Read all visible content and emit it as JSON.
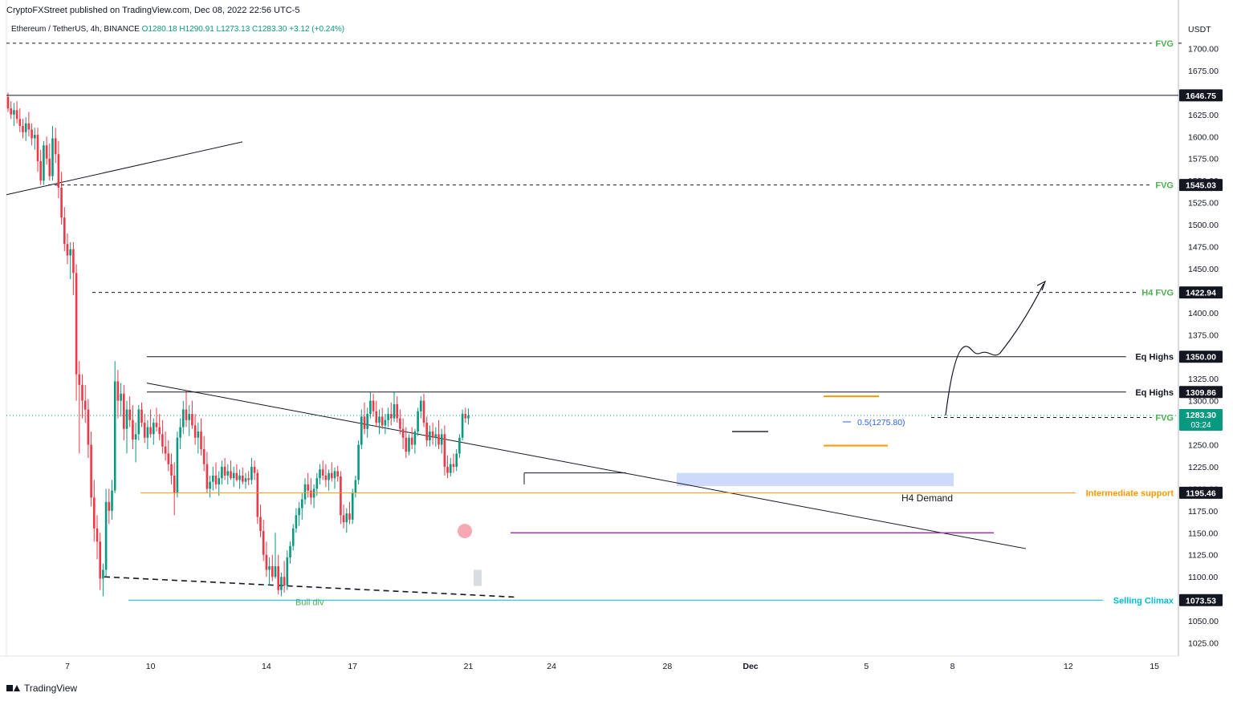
{
  "header": {
    "publisher_line": "CryptoFXStreet published on TradingView.com, Dec 08, 2022 22:56 UTC-5"
  },
  "legend": {
    "symbol": "Ethereum / TetherUS, 4h, BINANCE",
    "open": "O1280.18",
    "high": "H1290.91",
    "low": "L1273.13",
    "close": "C1283.30",
    "change": "+3.12 (+0.24%)"
  },
  "footer": {
    "brand": "TradingView"
  },
  "colors": {
    "up": "#089981",
    "down": "#f23645",
    "fvg": "#4caf50",
    "orange": "#ff9800",
    "purple": "#9c27b0",
    "cyan": "#00bcd4",
    "blue_zone": "#c5d4fb"
  },
  "chart_data": {
    "type": "candlestick",
    "y_unit": "USDT",
    "ylim": [
      1010,
      1715
    ],
    "y_ticks": [
      1025,
      1050,
      1075,
      1100,
      1125,
      1150,
      1175,
      1200,
      1225,
      1250,
      1275,
      1300,
      1325,
      1350,
      1375,
      1400,
      1425,
      1450,
      1475,
      1500,
      1525,
      1550,
      1575,
      1600,
      1625,
      1650,
      1675,
      1700
    ],
    "x_ticks": [
      {
        "label": "7",
        "bar": 20
      },
      {
        "label": "10",
        "bar": 48
      },
      {
        "label": "14",
        "bar": 87
      },
      {
        "label": "17",
        "bar": 116
      },
      {
        "label": "21",
        "bar": 155
      },
      {
        "label": "24",
        "bar": 183
      },
      {
        "label": "28",
        "bar": 222
      },
      {
        "label": "Dec",
        "bar": 250
      },
      {
        "label": "5",
        "bar": 289
      },
      {
        "label": "8",
        "bar": 318
      },
      {
        "label": "12",
        "bar": 357
      },
      {
        "label": "15",
        "bar": 386
      }
    ],
    "levels": [
      {
        "label": "FVG",
        "value": 1706,
        "style": "dashed",
        "color": "#4caf50",
        "badge": ""
      },
      {
        "label": "",
        "value": 1646.75,
        "style": "solid",
        "color": "#131722",
        "badge": "1646.75"
      },
      {
        "label": "FVG",
        "value": 1545.03,
        "style": "dashed",
        "color": "#4caf50",
        "badge": "1545.03"
      },
      {
        "label": "H4 FVG",
        "value": 1422.94,
        "style": "dashed",
        "color": "#4caf50",
        "badge": "1422.94"
      },
      {
        "label": "Eq Highs",
        "value": 1350.0,
        "style": "solid",
        "color": "#131722",
        "badge": "1350.00"
      },
      {
        "label": "Eq Highs",
        "value": 1309.86,
        "style": "solid",
        "color": "#131722",
        "badge": "1309.86"
      },
      {
        "label": "FVG",
        "value": 1280.94,
        "style": "dashed",
        "color": "#4caf50",
        "badge": "1280.94"
      },
      {
        "label": "Intermediate support",
        "value": 1195.46,
        "style": "solid",
        "color": "#ff9800",
        "badge": "1195.46"
      },
      {
        "label": "Selling Climax",
        "value": 1073.53,
        "style": "solid",
        "color": "#00bcd4",
        "badge": "1073.53"
      }
    ],
    "price_badge": {
      "price": "1283.30",
      "countdown": "03:24"
    },
    "annotations": {
      "fib": "0.5(1275.80)",
      "h4_demand": "H4 Demand",
      "bull_div": "Bull div"
    },
    "candles": [
      [
        1645,
        1650,
        1628,
        1632
      ],
      [
        1632,
        1640,
        1620,
        1625
      ],
      [
        1625,
        1638,
        1612,
        1630
      ],
      [
        1630,
        1640,
        1615,
        1620
      ],
      [
        1620,
        1632,
        1605,
        1612
      ],
      [
        1612,
        1620,
        1598,
        1605
      ],
      [
        1605,
        1622,
        1595,
        1615
      ],
      [
        1615,
        1628,
        1600,
        1608
      ],
      [
        1608,
        1615,
        1590,
        1598
      ],
      [
        1598,
        1610,
        1585,
        1602
      ],
      [
        1602,
        1610,
        1560,
        1572
      ],
      [
        1572,
        1585,
        1545,
        1550
      ],
      [
        1550,
        1595,
        1545,
        1590
      ],
      [
        1590,
        1600,
        1568,
        1575
      ],
      [
        1575,
        1592,
        1550,
        1555
      ],
      [
        1555,
        1612,
        1550,
        1598
      ],
      [
        1598,
        1610,
        1570,
        1580
      ],
      [
        1580,
        1595,
        1530,
        1542
      ],
      [
        1542,
        1560,
        1500,
        1508
      ],
      [
        1508,
        1520,
        1470,
        1478
      ],
      [
        1478,
        1490,
        1455,
        1465
      ],
      [
        1465,
        1480,
        1438,
        1472
      ],
      [
        1472,
        1480,
        1420,
        1445
      ],
      [
        1445,
        1455,
        1300,
        1330
      ],
      [
        1330,
        1345,
        1240,
        1318
      ],
      [
        1318,
        1330,
        1280,
        1300
      ],
      [
        1300,
        1318,
        1275,
        1290
      ],
      [
        1290,
        1302,
        1235,
        1250
      ],
      [
        1250,
        1265,
        1180,
        1190
      ],
      [
        1190,
        1210,
        1140,
        1155
      ],
      [
        1155,
        1170,
        1120,
        1140
      ],
      [
        1140,
        1150,
        1085,
        1098
      ],
      [
        1098,
        1115,
        1078,
        1108
      ],
      [
        1108,
        1200,
        1100,
        1185
      ],
      [
        1185,
        1200,
        1160,
        1175
      ],
      [
        1175,
        1210,
        1165,
        1198
      ],
      [
        1198,
        1345,
        1195,
        1322
      ],
      [
        1322,
        1335,
        1280,
        1300
      ],
      [
        1300,
        1320,
        1282,
        1308
      ],
      [
        1308,
        1318,
        1255,
        1268
      ],
      [
        1268,
        1300,
        1240,
        1290
      ],
      [
        1290,
        1305,
        1270,
        1278
      ],
      [
        1278,
        1295,
        1245,
        1256
      ],
      [
        1256,
        1275,
        1230,
        1262
      ],
      [
        1262,
        1295,
        1255,
        1290
      ],
      [
        1290,
        1298,
        1270,
        1275
      ],
      [
        1275,
        1285,
        1252,
        1258
      ],
      [
        1258,
        1278,
        1245,
        1270
      ],
      [
        1270,
        1290,
        1258,
        1262
      ],
      [
        1262,
        1280,
        1250,
        1275
      ],
      [
        1275,
        1292,
        1265,
        1270
      ],
      [
        1270,
        1285,
        1255,
        1262
      ],
      [
        1262,
        1278,
        1240,
        1248
      ],
      [
        1248,
        1265,
        1232,
        1240
      ],
      [
        1240,
        1255,
        1220,
        1228
      ],
      [
        1228,
        1240,
        1205,
        1215
      ],
      [
        1215,
        1230,
        1170,
        1195
      ],
      [
        1195,
        1265,
        1190,
        1258
      ],
      [
        1258,
        1280,
        1245,
        1270
      ],
      [
        1270,
        1300,
        1262,
        1290
      ],
      [
        1290,
        1312,
        1270,
        1278
      ],
      [
        1278,
        1295,
        1260,
        1285
      ],
      [
        1285,
        1300,
        1268,
        1272
      ],
      [
        1272,
        1285,
        1250,
        1258
      ],
      [
        1258,
        1275,
        1240,
        1265
      ],
      [
        1265,
        1280,
        1238,
        1245
      ],
      [
        1245,
        1260,
        1220,
        1228
      ],
      [
        1228,
        1242,
        1195,
        1200
      ],
      [
        1200,
        1215,
        1190,
        1208
      ],
      [
        1208,
        1225,
        1198,
        1215
      ],
      [
        1215,
        1230,
        1200,
        1205
      ],
      [
        1205,
        1220,
        1192,
        1212
      ],
      [
        1212,
        1232,
        1205,
        1225
      ],
      [
        1225,
        1235,
        1210,
        1215
      ],
      [
        1215,
        1228,
        1205,
        1220
      ],
      [
        1220,
        1232,
        1210,
        1212
      ],
      [
        1212,
        1225,
        1202,
        1218
      ],
      [
        1218,
        1228,
        1208,
        1210
      ],
      [
        1210,
        1222,
        1200,
        1215
      ],
      [
        1215,
        1224,
        1205,
        1208
      ],
      [
        1208,
        1218,
        1200,
        1212
      ],
      [
        1212,
        1220,
        1204,
        1210
      ],
      [
        1210,
        1235,
        1205,
        1225
      ],
      [
        1225,
        1232,
        1210,
        1218
      ],
      [
        1218,
        1222,
        1160,
        1168
      ],
      [
        1168,
        1182,
        1145,
        1152
      ],
      [
        1152,
        1165,
        1118,
        1125
      ],
      [
        1125,
        1140,
        1100,
        1108
      ],
      [
        1108,
        1122,
        1090,
        1112
      ],
      [
        1112,
        1125,
        1095,
        1100
      ],
      [
        1100,
        1150,
        1098,
        1112
      ],
      [
        1112,
        1125,
        1080,
        1085
      ],
      [
        1085,
        1105,
        1078,
        1100
      ],
      [
        1100,
        1118,
        1082,
        1090
      ],
      [
        1090,
        1130,
        1085,
        1122
      ],
      [
        1122,
        1140,
        1115,
        1135
      ],
      [
        1135,
        1160,
        1130,
        1155
      ],
      [
        1155,
        1178,
        1150,
        1170
      ],
      [
        1170,
        1185,
        1158,
        1178
      ],
      [
        1178,
        1195,
        1165,
        1188
      ],
      [
        1188,
        1212,
        1182,
        1205
      ],
      [
        1205,
        1218,
        1190,
        1198
      ],
      [
        1198,
        1212,
        1182,
        1190
      ],
      [
        1190,
        1205,
        1178,
        1200
      ],
      [
        1200,
        1218,
        1192,
        1212
      ],
      [
        1212,
        1228,
        1205,
        1222
      ],
      [
        1222,
        1232,
        1210,
        1215
      ],
      [
        1215,
        1228,
        1202,
        1210
      ],
      [
        1210,
        1222,
        1198,
        1218
      ],
      [
        1218,
        1230,
        1208,
        1212
      ],
      [
        1212,
        1224,
        1200,
        1220
      ],
      [
        1220,
        1226,
        1208,
        1214
      ],
      [
        1214,
        1220,
        1160,
        1170
      ],
      [
        1170,
        1182,
        1155,
        1162
      ],
      [
        1162,
        1178,
        1150,
        1172
      ],
      [
        1172,
        1185,
        1160,
        1165
      ],
      [
        1165,
        1200,
        1160,
        1195
      ],
      [
        1195,
        1215,
        1190,
        1210
      ],
      [
        1210,
        1255,
        1205,
        1250
      ],
      [
        1250,
        1290,
        1245,
        1282
      ],
      [
        1282,
        1298,
        1262,
        1268
      ],
      [
        1268,
        1292,
        1258,
        1285
      ],
      [
        1285,
        1310,
        1280,
        1300
      ],
      [
        1300,
        1308,
        1282,
        1288
      ],
      [
        1288,
        1300,
        1270,
        1275
      ],
      [
        1275,
        1290,
        1262,
        1282
      ],
      [
        1282,
        1292,
        1268,
        1272
      ],
      [
        1272,
        1285,
        1262,
        1278
      ],
      [
        1278,
        1292,
        1270,
        1285
      ],
      [
        1285,
        1298,
        1272,
        1280
      ],
      [
        1280,
        1310,
        1276,
        1296
      ],
      [
        1296,
        1305,
        1275,
        1280
      ],
      [
        1280,
        1290,
        1262,
        1268
      ],
      [
        1268,
        1280,
        1245,
        1258
      ],
      [
        1258,
        1270,
        1235,
        1242
      ],
      [
        1242,
        1262,
        1238,
        1258
      ],
      [
        1258,
        1270,
        1245,
        1250
      ],
      [
        1250,
        1268,
        1240,
        1265
      ],
      [
        1265,
        1292,
        1260,
        1288
      ],
      [
        1288,
        1305,
        1280,
        1300
      ],
      [
        1300,
        1308,
        1270,
        1275
      ],
      [
        1275,
        1282,
        1248,
        1255
      ],
      [
        1255,
        1272,
        1248,
        1265
      ],
      [
        1265,
        1275,
        1250,
        1258
      ],
      [
        1258,
        1270,
        1248,
        1262
      ],
      [
        1262,
        1278,
        1245,
        1250
      ],
      [
        1250,
        1268,
        1240,
        1262
      ],
      [
        1262,
        1272,
        1215,
        1225
      ],
      [
        1225,
        1238,
        1212,
        1218
      ],
      [
        1218,
        1235,
        1214,
        1228
      ],
      [
        1228,
        1240,
        1218,
        1225
      ],
      [
        1225,
        1245,
        1220,
        1240
      ],
      [
        1240,
        1262,
        1235,
        1258
      ],
      [
        1258,
        1290,
        1255,
        1285
      ],
      [
        1285,
        1292,
        1275,
        1280
      ],
      [
        1280,
        1291,
        1273,
        1283.3
      ]
    ]
  }
}
